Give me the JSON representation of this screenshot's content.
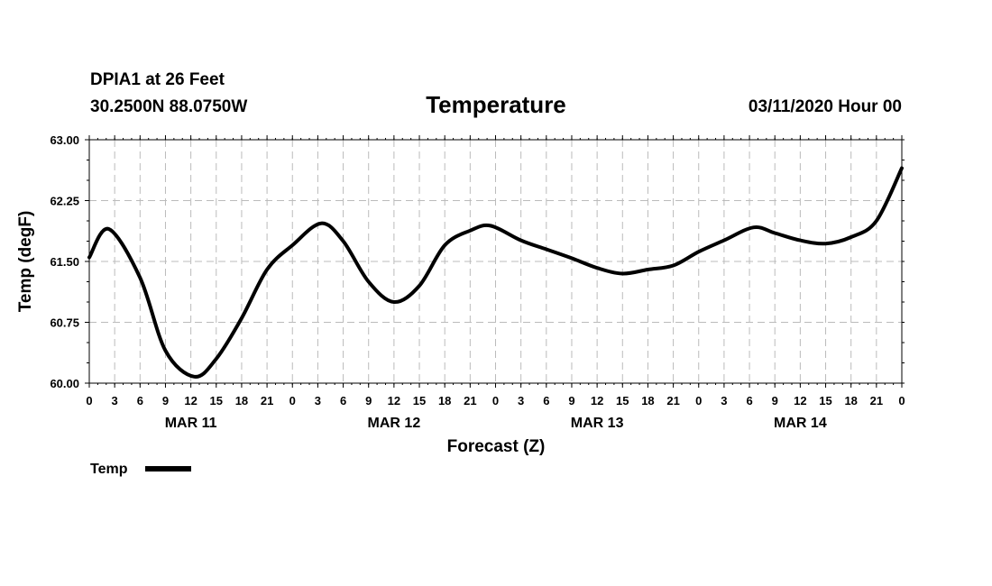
{
  "header": {
    "station": "DPIA1 at 26 Feet",
    "coords": "30.2500N 88.0750W",
    "datetime": "03/11/2020 Hour 00"
  },
  "legend": {
    "label": "Temp"
  },
  "colors": {
    "line": "#000000",
    "grid": "#bbbbbb"
  },
  "chart_data": {
    "type": "line",
    "title": "Temperature",
    "xlabel": "Forecast (Z)",
    "ylabel": "Temp (degF)",
    "ylim": [
      60.0,
      63.0
    ],
    "yticks": [
      "60.00",
      "60.75",
      "61.50",
      "62.25",
      "63.00"
    ],
    "xlim": [
      0,
      96
    ],
    "xtick_labels": [
      "0",
      "3",
      "6",
      "9",
      "12",
      "15",
      "18",
      "21",
      "0",
      "3",
      "6",
      "9",
      "12",
      "15",
      "18",
      "21",
      "0",
      "3",
      "6",
      "9",
      "12",
      "15",
      "18",
      "21",
      "0",
      "3",
      "6",
      "9",
      "12",
      "15",
      "18",
      "21",
      "0"
    ],
    "day_labels": [
      {
        "label": "MAR 11",
        "hour": 12
      },
      {
        "label": "MAR 12",
        "hour": 36
      },
      {
        "label": "MAR 13",
        "hour": 60
      },
      {
        "label": "MAR 14",
        "hour": 84
      }
    ],
    "grid": true,
    "series": [
      {
        "name": "Temp",
        "x": [
          0,
          2.3,
          6,
          9,
          12.4,
          15,
          18,
          21,
          24,
          27.4,
          30,
          33,
          36,
          39,
          42,
          45,
          47.4,
          51,
          54,
          57,
          60,
          63,
          66,
          69,
          72,
          75,
          78.5,
          81,
          84,
          87,
          90,
          93,
          96
        ],
        "y": [
          61.55,
          61.9,
          61.3,
          60.4,
          60.08,
          60.3,
          60.8,
          61.4,
          61.7,
          61.97,
          61.75,
          61.25,
          61.0,
          61.2,
          61.7,
          61.88,
          61.94,
          61.76,
          61.65,
          61.54,
          61.42,
          61.35,
          61.4,
          61.45,
          61.62,
          61.76,
          61.92,
          61.85,
          61.76,
          61.72,
          61.8,
          62.0,
          62.65
        ]
      }
    ]
  }
}
